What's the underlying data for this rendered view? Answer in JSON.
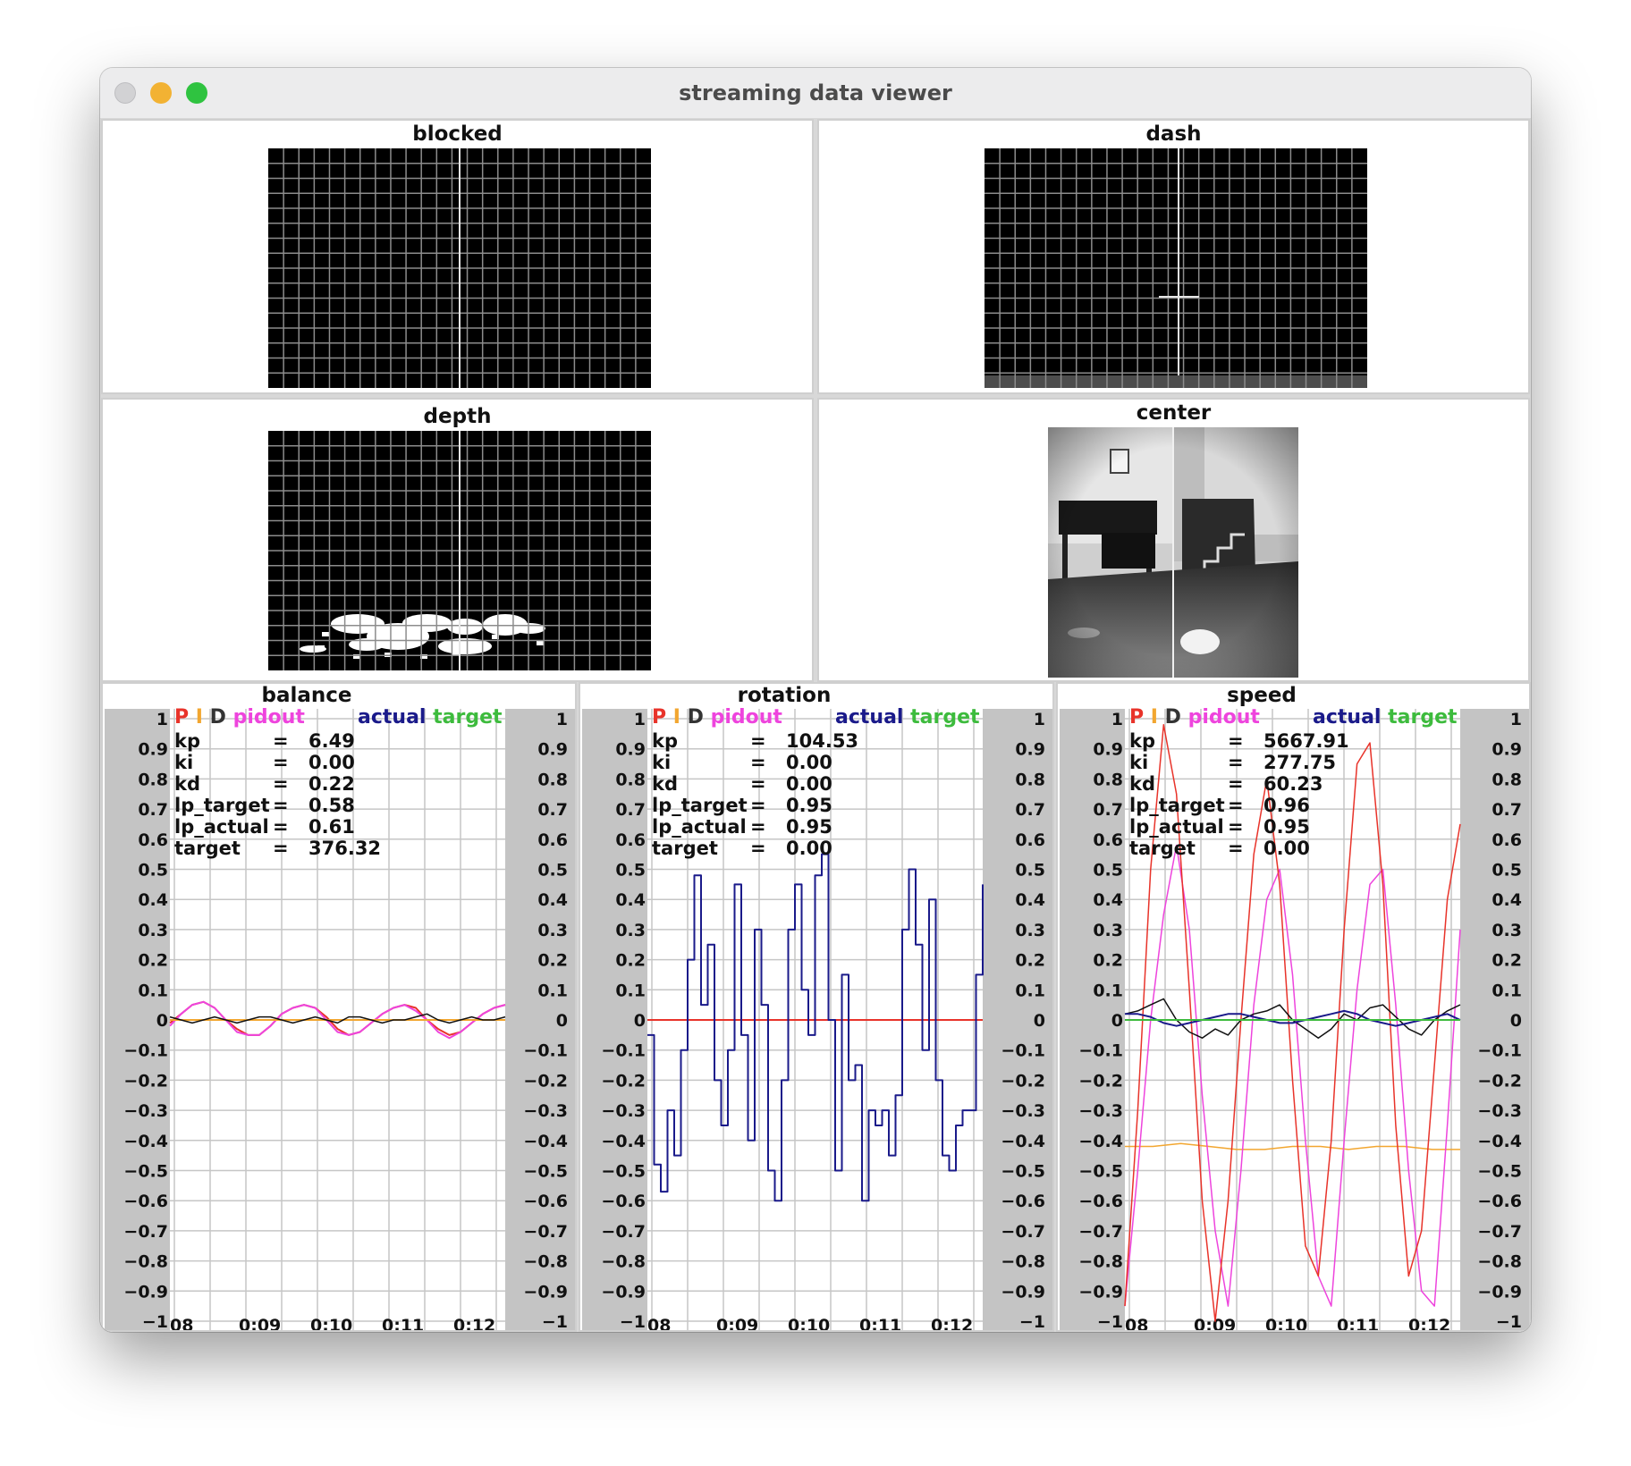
{
  "window": {
    "title": "streaming data viewer"
  },
  "views": {
    "blocked": {
      "title": "blocked"
    },
    "dash": {
      "title": "dash"
    },
    "depth": {
      "title": "depth"
    },
    "center": {
      "title": "center"
    }
  },
  "chart_data": [
    {
      "type": "line",
      "title": "balance",
      "x_ticks": [
        "08",
        "0:09",
        "0:10",
        "0:11",
        "0:12"
      ],
      "ylim": [
        -1,
        1
      ],
      "y_ticks": [
        "1",
        "0.9",
        "0.8",
        "0.7",
        "0.6",
        "0.5",
        "0.4",
        "0.3",
        "0.2",
        "0.1",
        "0",
        "−0.1",
        "−0.2",
        "−0.3",
        "−0.4",
        "−0.5",
        "−0.6",
        "−0.7",
        "−0.8",
        "−0.9",
        "−1"
      ],
      "legend": [
        "P",
        "I",
        "D",
        "pidout",
        "actual",
        "target"
      ],
      "params": [
        {
          "name": "kp",
          "value": "6.49"
        },
        {
          "name": "ki",
          "value": "0.00"
        },
        {
          "name": "kd",
          "value": "0.22"
        },
        {
          "name": "lp_target",
          "value": "0.58"
        },
        {
          "name": "lp_actual",
          "value": "0.61"
        },
        {
          "name": "target",
          "value": "376.32"
        }
      ],
      "series": [
        {
          "name": "P",
          "color": "#e8332a",
          "width": 2,
          "values": [
            -0.01,
            0.02,
            0.05,
            0.06,
            0.04,
            0.0,
            -0.03,
            -0.05,
            -0.05,
            -0.02,
            0.02,
            0.04,
            0.05,
            0.04,
            0.01,
            -0.03,
            -0.05,
            -0.04,
            -0.01,
            0.02,
            0.04,
            0.05,
            0.04,
            0.0,
            -0.03,
            -0.05,
            -0.04,
            -0.01,
            0.02,
            0.04,
            0.05
          ]
        },
        {
          "name": "pidout",
          "color": "#ee44dd",
          "width": 2,
          "values": [
            -0.02,
            0.02,
            0.05,
            0.06,
            0.04,
            0.0,
            -0.04,
            -0.05,
            -0.05,
            -0.02,
            0.02,
            0.04,
            0.05,
            0.04,
            0.0,
            -0.04,
            -0.05,
            -0.04,
            -0.01,
            0.02,
            0.04,
            0.05,
            0.03,
            0.0,
            -0.04,
            -0.06,
            -0.04,
            -0.01,
            0.02,
            0.04,
            0.05
          ]
        },
        {
          "name": "I",
          "color": "#f2a630",
          "width": 2,
          "values": [
            0.0,
            0.0,
            0.0,
            0.0,
            0.0,
            0.0,
            0.0,
            0.0,
            0.0,
            0.0,
            0.0,
            0.0,
            0.0,
            0.0,
            0.0,
            0.0,
            0.0,
            0.0,
            0.0,
            0.0,
            0.0,
            0.0,
            0.0,
            0.0,
            0.0,
            0.0,
            0.0,
            0.0,
            0.0,
            0.0,
            0.0
          ]
        },
        {
          "name": "D",
          "color": "#111111",
          "width": 1.5,
          "values": [
            0.01,
            0.0,
            -0.01,
            0.0,
            0.01,
            0.0,
            -0.01,
            0.0,
            0.01,
            0.01,
            0.0,
            -0.01,
            0.0,
            0.01,
            0.0,
            -0.01,
            0.01,
            0.01,
            0.0,
            -0.01,
            0.0,
            0.0,
            0.01,
            0.02,
            0.0,
            -0.01,
            0.0,
            0.01,
            0.0,
            0.0,
            0.01
          ]
        }
      ]
    },
    {
      "type": "line",
      "title": "rotation",
      "x_ticks": [
        "08",
        "0:09",
        "0:10",
        "0:11",
        "0:12"
      ],
      "ylim": [
        -1,
        1
      ],
      "y_ticks": [
        "1",
        "0.9",
        "0.8",
        "0.7",
        "0.6",
        "0.5",
        "0.4",
        "0.3",
        "0.2",
        "0.1",
        "0",
        "−0.1",
        "−0.2",
        "−0.3",
        "−0.4",
        "−0.5",
        "−0.6",
        "−0.7",
        "−0.8",
        "−0.9",
        "−1"
      ],
      "legend": [
        "P",
        "I",
        "D",
        "pidout",
        "actual",
        "target"
      ],
      "params": [
        {
          "name": "kp",
          "value": "104.53"
        },
        {
          "name": "ki",
          "value": "0.00"
        },
        {
          "name": "kd",
          "value": "0.00"
        },
        {
          "name": "lp_target",
          "value": "0.95"
        },
        {
          "name": "lp_actual",
          "value": "0.95"
        },
        {
          "name": "target",
          "value": "0.00"
        }
      ],
      "series": [
        {
          "name": "target",
          "color": "#3dbb3d",
          "width": 2,
          "values": [
            0,
            0,
            0,
            0,
            0,
            0,
            0,
            0,
            0,
            0,
            0,
            0,
            0,
            0,
            0,
            0,
            0,
            0,
            0,
            0,
            0,
            0,
            0,
            0,
            0,
            0,
            0,
            0,
            0,
            0,
            0,
            0,
            0,
            0,
            0,
            0,
            0,
            0,
            0,
            0,
            0,
            0,
            0,
            0,
            0,
            0,
            0,
            0,
            0,
            0,
            0
          ]
        },
        {
          "name": "P",
          "color": "#e8332a",
          "width": 2,
          "values": [
            0,
            0,
            0,
            0,
            0,
            0,
            0,
            0,
            0,
            0,
            0,
            0,
            0,
            0,
            0,
            0,
            0,
            0,
            0,
            0,
            0,
            0,
            0,
            0,
            0,
            0,
            0,
            0,
            0,
            0,
            0,
            0,
            0,
            0,
            0,
            0,
            0,
            0,
            0,
            0,
            0,
            0,
            0,
            0,
            0,
            0,
            0,
            0,
            0,
            0,
            0
          ]
        },
        {
          "name": "actual",
          "color": "#1a1a8a",
          "width": 2,
          "step": true,
          "values": [
            -0.05,
            -0.48,
            -0.57,
            -0.3,
            -0.45,
            -0.1,
            0.2,
            0.48,
            0.05,
            0.25,
            -0.2,
            -0.35,
            -0.1,
            0.45,
            -0.05,
            -0.4,
            0.3,
            0.05,
            -0.5,
            -0.6,
            -0.2,
            0.3,
            0.45,
            0.1,
            -0.05,
            0.48,
            0.55,
            0.0,
            -0.5,
            0.15,
            -0.2,
            -0.15,
            -0.6,
            -0.3,
            -0.35,
            -0.3,
            -0.45,
            -0.25,
            0.3,
            0.5,
            0.25,
            -0.1,
            0.4,
            -0.2,
            -0.45,
            -0.5,
            -0.35,
            -0.3,
            -0.3,
            0.15,
            0.45
          ]
        }
      ]
    },
    {
      "type": "line",
      "title": "speed",
      "x_ticks": [
        "08",
        "0:09",
        "0:10",
        "0:11",
        "0:12"
      ],
      "ylim": [
        -1,
        1
      ],
      "y_ticks": [
        "1",
        "0.9",
        "0.8",
        "0.7",
        "0.6",
        "0.5",
        "0.4",
        "0.3",
        "0.2",
        "0.1",
        "0",
        "−0.1",
        "−0.2",
        "−0.3",
        "−0.4",
        "−0.5",
        "−0.6",
        "−0.7",
        "−0.8",
        "−0.9",
        "−1"
      ],
      "legend": [
        "P",
        "I",
        "D",
        "pidout",
        "actual",
        "target"
      ],
      "params": [
        {
          "name": "kp",
          "value": "5667.91"
        },
        {
          "name": "ki",
          "value": "277.75"
        },
        {
          "name": "kd",
          "value": "60.23"
        },
        {
          "name": "lp_target",
          "value": "0.96"
        },
        {
          "name": "lp_actual",
          "value": "0.95"
        },
        {
          "name": "target",
          "value": "0.00"
        }
      ],
      "series": [
        {
          "name": "I",
          "color": "#f2a630",
          "width": 1.5,
          "values": [
            -0.42,
            -0.42,
            -0.41,
            -0.42,
            -0.43,
            -0.43,
            -0.42,
            -0.42,
            -0.43,
            -0.42,
            -0.42,
            -0.43,
            -0.43
          ]
        },
        {
          "name": "pidout",
          "color": "#ee44dd",
          "width": 1.5,
          "values": [
            -0.95,
            -0.5,
            0.0,
            0.35,
            0.58,
            0.3,
            -0.25,
            -0.7,
            -0.95,
            -0.5,
            0.05,
            0.4,
            0.5,
            0.15,
            -0.4,
            -0.85,
            -0.95,
            -0.4,
            0.1,
            0.45,
            0.5,
            0.05,
            -0.5,
            -0.9,
            -0.95,
            -0.35,
            0.3
          ]
        },
        {
          "name": "P",
          "color": "#e8332a",
          "width": 1.5,
          "values": [
            -0.95,
            -0.3,
            0.5,
            0.98,
            0.75,
            0.1,
            -0.6,
            -1.0,
            -0.6,
            0.0,
            0.55,
            0.8,
            0.45,
            -0.2,
            -0.75,
            -0.85,
            -0.4,
            0.3,
            0.85,
            0.92,
            0.45,
            -0.35,
            -0.85,
            -0.7,
            -0.15,
            0.4,
            0.65
          ]
        },
        {
          "name": "D",
          "color": "#111111",
          "width": 1.5,
          "values": [
            0.02,
            0.03,
            0.05,
            0.07,
            0.0,
            -0.04,
            -0.06,
            -0.03,
            -0.05,
            0.0,
            0.02,
            0.03,
            0.05,
            0.0,
            -0.03,
            -0.06,
            -0.03,
            0.02,
            0.0,
            0.04,
            0.05,
            0.01,
            -0.03,
            -0.05,
            0.0,
            0.03,
            0.05
          ]
        },
        {
          "name": "actual",
          "color": "#1a1a8a",
          "width": 2,
          "values": [
            0.02,
            0.02,
            0.01,
            -0.01,
            -0.02,
            -0.01,
            0.0,
            0.01,
            0.02,
            0.02,
            0.01,
            0.0,
            -0.01,
            -0.01,
            0.0,
            0.01,
            0.02,
            0.03,
            0.02,
            0.0,
            -0.01,
            -0.02,
            -0.01,
            0.0,
            0.01,
            0.02,
            0.0
          ]
        },
        {
          "name": "target",
          "color": "#3dbb3d",
          "width": 2,
          "values": [
            0,
            0,
            0,
            0,
            0,
            0,
            0,
            0,
            0,
            0,
            0,
            0,
            0,
            0,
            0,
            0,
            0,
            0,
            0,
            0,
            0,
            0,
            0,
            0,
            0,
            0,
            0
          ]
        }
      ]
    }
  ]
}
